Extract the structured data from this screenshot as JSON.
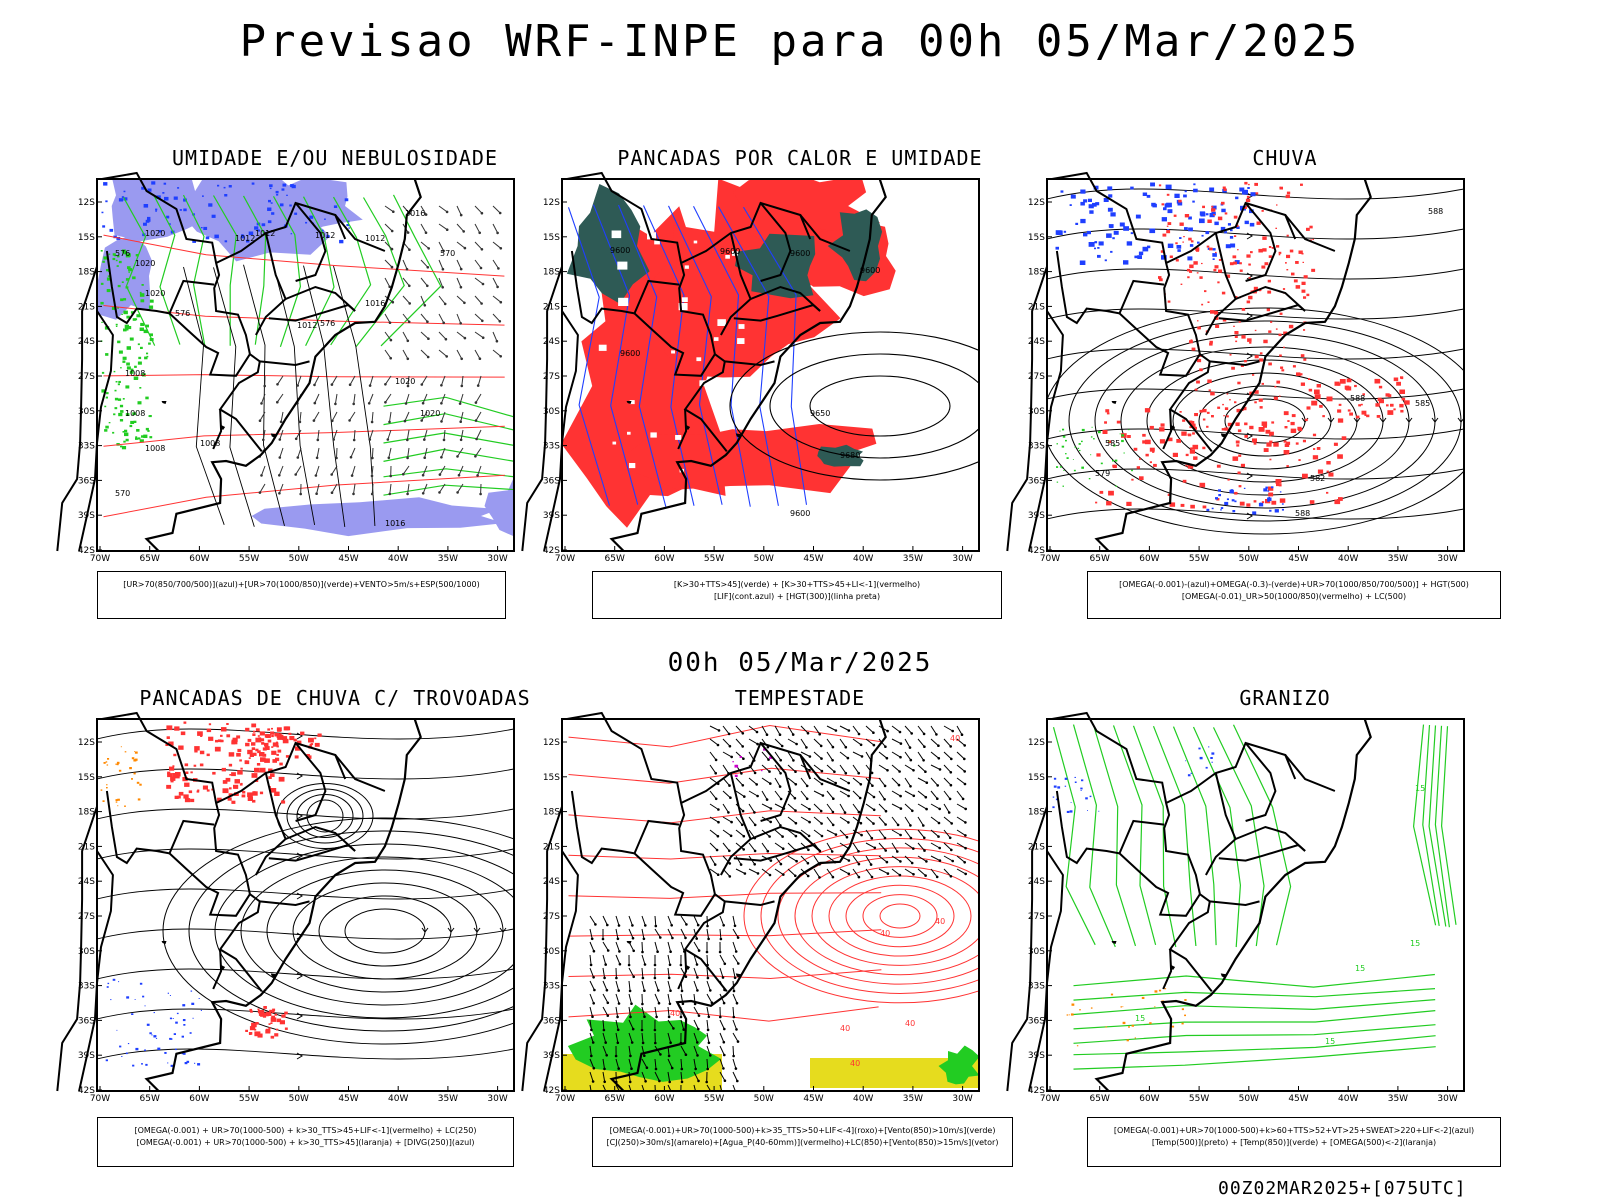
{
  "main_title": "Previsao WRF-INPE  para 00h 05/Mar/2025",
  "mid_title": "00h 05/Mar/2025",
  "footer_stamp": "00Z02MAR2025+[075UTC]",
  "lat_ticks": [
    "12S",
    "15S",
    "18S",
    "21S",
    "24S",
    "27S",
    "30S",
    "33S",
    "36S",
    "39S",
    "42S"
  ],
  "lon_ticks": [
    "70W",
    "65W",
    "60W",
    "55W",
    "50W",
    "45W",
    "40W",
    "35W",
    "30W"
  ],
  "panels": [
    {
      "id": "umidade",
      "title": "UMIDADE E/OU NEBULOSIDADE",
      "legend": [
        "[UR>70(850/700/500)](azul)+[UR>70(1000/850)](verde)+VENTO>5m/s+ESP(500/1000)"
      ],
      "contour_labels": [
        "1012",
        "1012",
        "1012",
        "1012",
        "1016",
        "1020",
        "1012",
        "1016",
        "1020",
        "1020",
        "1008",
        "1008",
        "1008",
        "1020",
        "1020",
        "1016",
        "1008",
        "576",
        "576",
        "570",
        "576",
        "570"
      ]
    },
    {
      "id": "pancadas-calor",
      "title": "PANCADAS POR CALOR E UMIDADE",
      "legend": [
        "[K>30+TTS>45](verde) + [K>30+TTS>45+LI<-1](vermelho)",
        "[LIF](cont.azul) + [HGT(300)](linha preta)"
      ],
      "contour_labels": [
        "9600",
        "9600",
        "9600",
        "9600",
        "9600",
        "9650",
        "9680",
        "9600"
      ]
    },
    {
      "id": "chuva",
      "title": "CHUVA",
      "legend": [
        "[OMEGA(-0.001)-(azul)+OMEGA(-0.3)-(verde)+UR>70(1000/850/700/500)] + HGT(500)",
        "[OMEGA(-0.01)_UR>50(1000/850)(vermelho) + LC(500)"
      ],
      "contour_labels": [
        "588",
        "588",
        "585",
        "582",
        "579",
        "585",
        "588"
      ]
    },
    {
      "id": "pancadas-trovoadas",
      "title": "PANCADAS DE CHUVA C/ TROVOADAS",
      "legend": [
        "[OMEGA(-0.001) + UR>70(1000-500) + k>30_TTS>45+LIF<-1](vermelho) + LC(250)",
        "[OMEGA(-0.001) + UR>70(1000-500) + k>30_TTS>45](laranja) + [DIVG(250)](azul)"
      ],
      "contour_labels": []
    },
    {
      "id": "tempestade",
      "title": "TEMPESTADE",
      "legend": [
        "[OMEGA(-0.001)+UR>70(1000-500)+k>35_TTS>50+LIF<-4](roxo)+[Vento(850)>10m/s](verde)",
        "[CJ(250)>30m/s](amarelo)+[Agua_P(40-60mm)](vermelho)+LC(850)+[Vento(850)>15m/s](vetor)"
      ],
      "contour_labels": [
        "40",
        "40",
        "40",
        "40",
        "40",
        "40",
        "40"
      ]
    },
    {
      "id": "granizo",
      "title": "GRANIZO",
      "legend": [
        "[OMEGA(-0.001)+UR>70(1000-500)+k>60+TTS>52+VT>25+SWEAT>220+LIF<-2](azul)",
        "[Temp(500)](preto) + [Temp(850)](verde) + [OMEGA(500)<-2](laranja)"
      ],
      "contour_labels": [
        "15",
        "15",
        "15",
        "15",
        "15"
      ]
    }
  ],
  "colors": {
    "blue": "#1f3fff",
    "light_blue": "#9a9af0",
    "green": "#22cc22",
    "red": "#ff3333",
    "dark_teal": "#2e5a55",
    "yellow": "#e6dc1e",
    "purple": "#cc00cc",
    "orange": "#ff8800",
    "black": "#000000"
  }
}
